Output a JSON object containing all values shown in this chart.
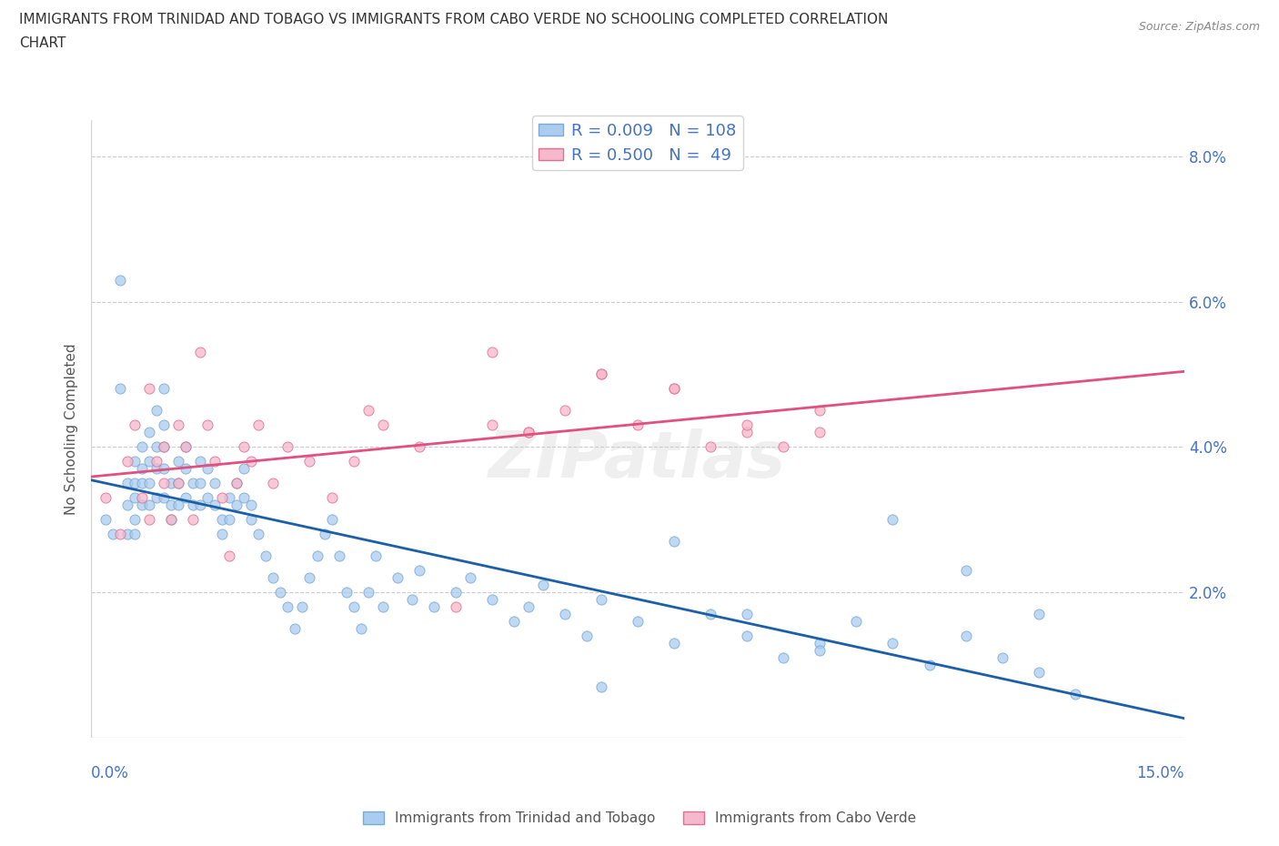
{
  "title_line1": "IMMIGRANTS FROM TRINIDAD AND TOBAGO VS IMMIGRANTS FROM CABO VERDE NO SCHOOLING COMPLETED CORRELATION",
  "title_line2": "CHART",
  "source_text": "Source: ZipAtlas.com",
  "ylabel": "No Schooling Completed",
  "watermark": "ZIPatlas",
  "x_min": 0.0,
  "x_max": 0.15,
  "y_min": 0.0,
  "y_max": 0.085,
  "y_ticks": [
    0.02,
    0.04,
    0.06,
    0.08
  ],
  "y_tick_labels": [
    "2.0%",
    "4.0%",
    "6.0%",
    "8.0%"
  ],
  "blue_scatter_color": "#aaccf0",
  "blue_scatter_edge": "#7aaad0",
  "pink_scatter_color": "#f5b8cc",
  "pink_scatter_edge": "#e07090",
  "blue_trend_color": "#1a5fa8",
  "pink_trend_color": "#e05080",
  "axis_label_color": "#4472c4",
  "grid_color": "#cccccc",
  "title_color": "#333333",
  "background_color": "#ffffff",
  "marker_size": 64,
  "marker_alpha": 0.75,
  "legend_label_blue": "R = 0.009   N = 108",
  "legend_label_pink": "R = 0.500   N =  49",
  "bottom_label_blue": "Immigrants from Trinidad and Tobago",
  "bottom_label_pink": "Immigrants from Cabo Verde",
  "series_blue_x": [
    0.002,
    0.003,
    0.004,
    0.004,
    0.005,
    0.005,
    0.005,
    0.006,
    0.006,
    0.006,
    0.006,
    0.006,
    0.007,
    0.007,
    0.007,
    0.007,
    0.008,
    0.008,
    0.008,
    0.008,
    0.009,
    0.009,
    0.009,
    0.009,
    0.01,
    0.01,
    0.01,
    0.01,
    0.01,
    0.011,
    0.011,
    0.011,
    0.012,
    0.012,
    0.012,
    0.013,
    0.013,
    0.013,
    0.014,
    0.014,
    0.015,
    0.015,
    0.015,
    0.016,
    0.016,
    0.017,
    0.017,
    0.018,
    0.018,
    0.019,
    0.019,
    0.02,
    0.02,
    0.021,
    0.021,
    0.022,
    0.022,
    0.023,
    0.024,
    0.025,
    0.026,
    0.027,
    0.028,
    0.029,
    0.03,
    0.031,
    0.032,
    0.033,
    0.034,
    0.035,
    0.036,
    0.037,
    0.038,
    0.039,
    0.04,
    0.042,
    0.044,
    0.045,
    0.047,
    0.05,
    0.052,
    0.055,
    0.058,
    0.06,
    0.062,
    0.065,
    0.068,
    0.07,
    0.075,
    0.08,
    0.085,
    0.09,
    0.095,
    0.1,
    0.105,
    0.11,
    0.115,
    0.12,
    0.125,
    0.13,
    0.135,
    0.07,
    0.08,
    0.09,
    0.1,
    0.11,
    0.12,
    0.13
  ],
  "series_blue_y": [
    0.03,
    0.028,
    0.063,
    0.048,
    0.035,
    0.032,
    0.028,
    0.038,
    0.035,
    0.033,
    0.03,
    0.028,
    0.04,
    0.037,
    0.035,
    0.032,
    0.042,
    0.038,
    0.035,
    0.032,
    0.045,
    0.04,
    0.037,
    0.033,
    0.048,
    0.043,
    0.04,
    0.037,
    0.033,
    0.035,
    0.032,
    0.03,
    0.038,
    0.035,
    0.032,
    0.04,
    0.037,
    0.033,
    0.035,
    0.032,
    0.038,
    0.035,
    0.032,
    0.037,
    0.033,
    0.035,
    0.032,
    0.03,
    0.028,
    0.033,
    0.03,
    0.035,
    0.032,
    0.037,
    0.033,
    0.032,
    0.03,
    0.028,
    0.025,
    0.022,
    0.02,
    0.018,
    0.015,
    0.018,
    0.022,
    0.025,
    0.028,
    0.03,
    0.025,
    0.02,
    0.018,
    0.015,
    0.02,
    0.025,
    0.018,
    0.022,
    0.019,
    0.023,
    0.018,
    0.02,
    0.022,
    0.019,
    0.016,
    0.018,
    0.021,
    0.017,
    0.014,
    0.019,
    0.016,
    0.013,
    0.017,
    0.014,
    0.011,
    0.013,
    0.016,
    0.013,
    0.01,
    0.014,
    0.011,
    0.009,
    0.006,
    0.007,
    0.027,
    0.017,
    0.012,
    0.03,
    0.023,
    0.017
  ],
  "series_pink_x": [
    0.002,
    0.004,
    0.005,
    0.006,
    0.007,
    0.008,
    0.008,
    0.009,
    0.01,
    0.01,
    0.011,
    0.012,
    0.012,
    0.013,
    0.014,
    0.015,
    0.016,
    0.017,
    0.018,
    0.019,
    0.02,
    0.021,
    0.022,
    0.023,
    0.025,
    0.027,
    0.03,
    0.033,
    0.036,
    0.038,
    0.04,
    0.045,
    0.05,
    0.055,
    0.06,
    0.065,
    0.07,
    0.075,
    0.08,
    0.085,
    0.09,
    0.095,
    0.1,
    0.055,
    0.06,
    0.07,
    0.08,
    0.09,
    0.1
  ],
  "series_pink_y": [
    0.033,
    0.028,
    0.038,
    0.043,
    0.033,
    0.048,
    0.03,
    0.038,
    0.04,
    0.035,
    0.03,
    0.043,
    0.035,
    0.04,
    0.03,
    0.053,
    0.043,
    0.038,
    0.033,
    0.025,
    0.035,
    0.04,
    0.038,
    0.043,
    0.035,
    0.04,
    0.038,
    0.033,
    0.038,
    0.045,
    0.043,
    0.04,
    0.018,
    0.053,
    0.042,
    0.045,
    0.05,
    0.043,
    0.048,
    0.04,
    0.042,
    0.04,
    0.042,
    0.043,
    0.042,
    0.05,
    0.048,
    0.043,
    0.045
  ]
}
